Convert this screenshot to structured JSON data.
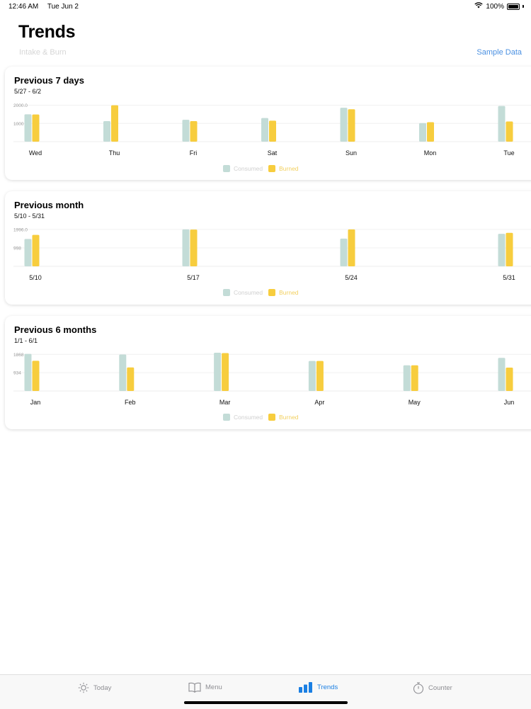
{
  "status": {
    "time": "12:46 AM",
    "date": "Tue Jun 2",
    "battery": "100%"
  },
  "header": {
    "title": "Trends",
    "subtitle": "Intake & Burn",
    "sample_button": "Sample Data"
  },
  "colors": {
    "consumed": "#c3dcd7",
    "burned": "#f7cd3e",
    "accent": "#1a7fe3"
  },
  "legend": {
    "consumed": "Consumed",
    "burned": "Burned"
  },
  "cards": [
    {
      "title": "Previous 7 days",
      "range": "5/27 - 6/2",
      "chart_data": {
        "type": "bar",
        "categories": [
          "Wed",
          "Thu",
          "Fri",
          "Sat",
          "Sun",
          "Mon",
          "Tue"
        ],
        "ticks": [
          "2000.0",
          "1000"
        ],
        "tick_values": [
          2000,
          1000
        ],
        "ylim": [
          0,
          2100
        ],
        "series": [
          {
            "name": "Consumed",
            "values": [
              1500,
              1130,
              1200,
              1300,
              1860,
              1020,
              1960
            ]
          },
          {
            "name": "Burned",
            "values": [
              1490,
              2000,
              1130,
              1150,
              1780,
              1070,
              1110
            ]
          }
        ]
      }
    },
    {
      "title": "Previous month",
      "range": "5/10 - 5/31",
      "chart_data": {
        "type": "bar",
        "categories": [
          "5/10",
          "5/17",
          "5/24",
          "5/31"
        ],
        "ticks": [
          "1996.0",
          "998"
        ],
        "tick_values": [
          1996,
          998
        ],
        "ylim": [
          0,
          2070
        ],
        "series": [
          {
            "name": "Consumed",
            "values": [
              1480,
              2000,
              1500,
              1760
            ]
          },
          {
            "name": "Burned",
            "values": [
              1700,
              1990,
              2000,
              1810
            ]
          }
        ]
      }
    },
    {
      "title": "Previous 6 months",
      "range": "1/1 - 6/1",
      "chart_data": {
        "type": "bar",
        "categories": [
          "Jan",
          "Feb",
          "Mar",
          "Apr",
          "May",
          "Jun"
        ],
        "ticks": [
          "1868",
          "934"
        ],
        "tick_values": [
          1868,
          934
        ],
        "ylim": [
          0,
          1950
        ],
        "series": [
          {
            "name": "Consumed",
            "values": [
              1890,
              1860,
              1950,
              1530,
              1310,
              1690
            ]
          },
          {
            "name": "Burned",
            "values": [
              1540,
              1200,
              1930,
              1530,
              1310,
              1190
            ]
          }
        ]
      }
    }
  ],
  "tabs": [
    {
      "label": "Today",
      "icon": "sun-icon"
    },
    {
      "label": "Menu",
      "icon": "book-icon"
    },
    {
      "label": "Trends",
      "icon": "bar-chart-icon",
      "active": true
    },
    {
      "label": "Counter",
      "icon": "stopwatch-icon"
    }
  ]
}
